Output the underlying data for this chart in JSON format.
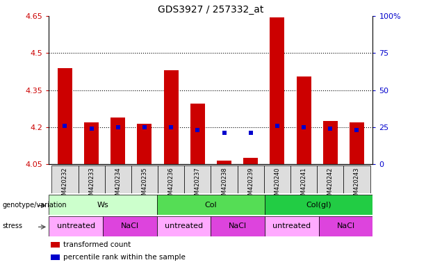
{
  "title": "GDS3927 / 257332_at",
  "samples": [
    "GSM420232",
    "GSM420233",
    "GSM420234",
    "GSM420235",
    "GSM420236",
    "GSM420237",
    "GSM420238",
    "GSM420239",
    "GSM420240",
    "GSM420241",
    "GSM420242",
    "GSM420243"
  ],
  "bar_values": [
    4.44,
    4.22,
    4.24,
    4.215,
    4.43,
    4.295,
    4.065,
    4.075,
    4.645,
    4.405,
    4.225,
    4.22
  ],
  "bar_base": 4.05,
  "percentile_raw": [
    26,
    24,
    25,
    25,
    25,
    23,
    21,
    21,
    26,
    25,
    24,
    23
  ],
  "ylim_left": [
    4.05,
    4.65
  ],
  "ylim_right": [
    0,
    100
  ],
  "yticks_left": [
    4.05,
    4.2,
    4.35,
    4.5,
    4.65
  ],
  "ytick_labels_left": [
    "4.05",
    "4.2",
    "4.35",
    "4.5",
    "4.65"
  ],
  "yticks_right": [
    0,
    25,
    50,
    75,
    100
  ],
  "ytick_labels_right": [
    "0",
    "25",
    "50",
    "75",
    "100%"
  ],
  "hlines": [
    4.2,
    4.35,
    4.5
  ],
  "bar_color": "#cc0000",
  "percentile_color": "#0000cc",
  "bar_width": 0.55,
  "genotype_groups": [
    {
      "label": "Ws",
      "start": 0,
      "end": 4,
      "color": "#ccffcc"
    },
    {
      "label": "Col",
      "start": 4,
      "end": 8,
      "color": "#55dd55"
    },
    {
      "label": "Col(gl)",
      "start": 8,
      "end": 12,
      "color": "#22cc44"
    }
  ],
  "stress_groups": [
    {
      "label": "untreated",
      "start": 0,
      "end": 2,
      "color": "#ffaaff"
    },
    {
      "label": "NaCl",
      "start": 2,
      "end": 4,
      "color": "#dd44dd"
    },
    {
      "label": "untreated",
      "start": 4,
      "end": 6,
      "color": "#ffaaff"
    },
    {
      "label": "NaCl",
      "start": 6,
      "end": 8,
      "color": "#dd44dd"
    },
    {
      "label": "untreated",
      "start": 8,
      "end": 10,
      "color": "#ffaaff"
    },
    {
      "label": "NaCl",
      "start": 10,
      "end": 12,
      "color": "#dd44dd"
    }
  ],
  "legend_items": [
    {
      "label": "transformed count",
      "color": "#cc0000"
    },
    {
      "label": "percentile rank within the sample",
      "color": "#0000cc"
    }
  ],
  "xlabel_genotype": "genotype/variation",
  "xlabel_stress": "stress",
  "bg_color": "#ffffff",
  "tick_label_color_left": "#cc0000",
  "tick_label_color_right": "#0000cc",
  "sample_bg": "#dddddd"
}
